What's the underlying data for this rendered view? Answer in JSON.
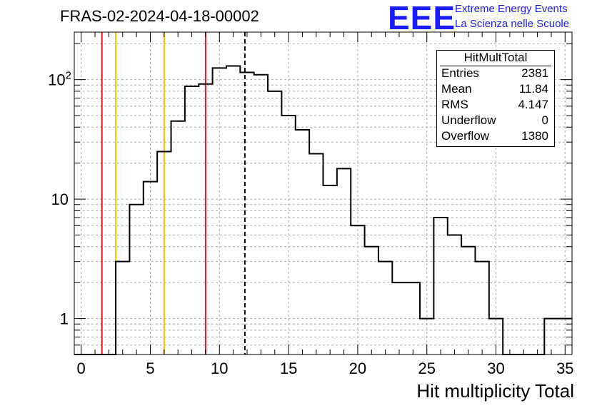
{
  "title": "FRAS-02-2024-04-18-00002",
  "logo": {
    "text": "EEE",
    "line1": "Extreme Energy Events",
    "line2": "La Scienza nelle Scuole",
    "color": "#1a1aff"
  },
  "stats_box": {
    "name": "HitMultTotal",
    "rows": [
      {
        "key": "Entries",
        "value": "2381"
      },
      {
        "key": "Mean",
        "value": "11.84"
      },
      {
        "key": "RMS",
        "value": "4.147"
      },
      {
        "key": "Underflow",
        "value": "0"
      },
      {
        "key": "Overflow",
        "value": "1380"
      }
    ]
  },
  "chart_data": {
    "type": "histogram",
    "title": "FRAS-02-2024-04-18-00002",
    "xlabel": "Hit multiplicity Total",
    "ylabel": "",
    "xlim": [
      -0.5,
      35.5
    ],
    "ylim": [
      0.5,
      250
    ],
    "y_scale": "log",
    "grid": true,
    "bin_edges": [
      -0.5,
      0.5,
      1.5,
      2.5,
      3.5,
      4.5,
      5.5,
      6.5,
      7.5,
      8.5,
      9.5,
      10.5,
      11.5,
      12.5,
      13.5,
      14.5,
      15.5,
      16.5,
      17.5,
      18.5,
      19.5,
      20.5,
      21.5,
      22.5,
      23.5,
      24.5,
      25.5,
      26.5,
      27.5,
      28.5,
      29.5,
      30.5,
      31.5,
      32.5,
      33.5,
      34.5,
      35.5
    ],
    "values": [
      0,
      0,
      0,
      3,
      9,
      14,
      25,
      45,
      88,
      92,
      125,
      130,
      115,
      110,
      80,
      50,
      38,
      24,
      13,
      18,
      6,
      4,
      3,
      2,
      2,
      1,
      7,
      5,
      4,
      3,
      1,
      0,
      0,
      0,
      1,
      1
    ],
    "x_ticks": [
      0,
      5,
      10,
      15,
      20,
      25,
      30,
      35
    ],
    "y_ticks": [
      {
        "value": 1,
        "label": "1"
      },
      {
        "value": 10,
        "label": "10"
      },
      {
        "value": 100,
        "label": "10^2"
      }
    ],
    "vertical_lines": [
      {
        "x": 1.5,
        "color": "#e8141c",
        "style": "solid"
      },
      {
        "x": 2.5,
        "color": "#f5c400",
        "style": "solid"
      },
      {
        "x": 6.0,
        "color": "#f5c400",
        "style": "solid"
      },
      {
        "x": 9.0,
        "color": "#e8141c",
        "style": "solid"
      },
      {
        "x": 11.84,
        "color": "#000000",
        "style": "dashed"
      }
    ],
    "line_color": "#000000"
  }
}
